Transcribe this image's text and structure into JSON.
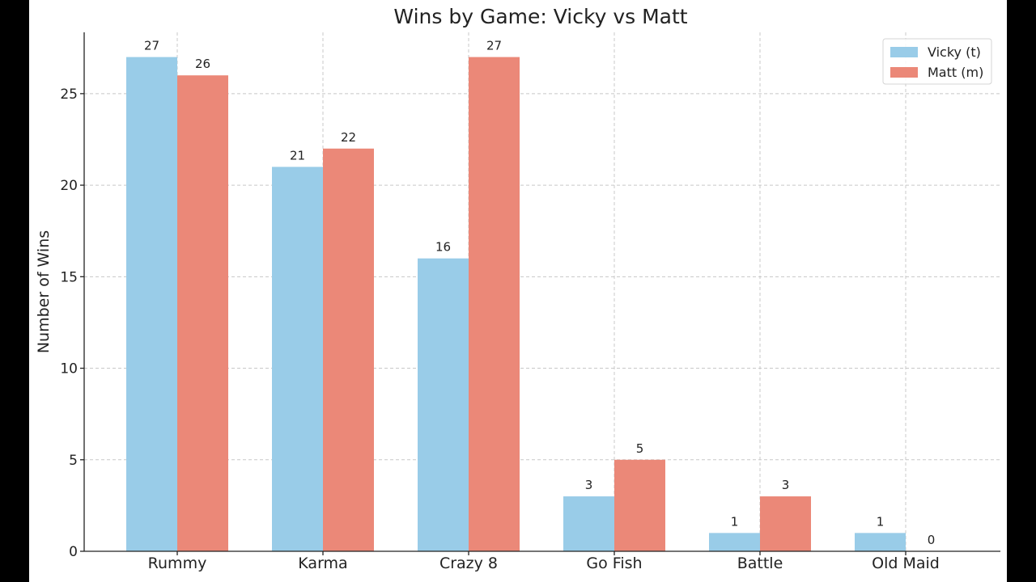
{
  "chart_data": {
    "type": "bar",
    "title": "Wins by Game: Vicky vs Matt",
    "xlabel": "",
    "ylabel": "Number of Wins",
    "categories": [
      "Rummy",
      "Karma",
      "Crazy 8",
      "Go Fish",
      "Battle",
      "Old Maid"
    ],
    "series": [
      {
        "name": "Vicky (t)",
        "color": "#99cce8",
        "values": [
          27,
          21,
          16,
          3,
          1,
          1
        ]
      },
      {
        "name": "Matt (m)",
        "color": "#eb8878",
        "values": [
          26,
          22,
          27,
          5,
          3,
          0
        ]
      }
    ],
    "ylim": [
      0,
      28.35
    ],
    "yticks": [
      0,
      5,
      10,
      15,
      20,
      25
    ],
    "grid": true,
    "legend": "top-right",
    "data_labels": true
  }
}
